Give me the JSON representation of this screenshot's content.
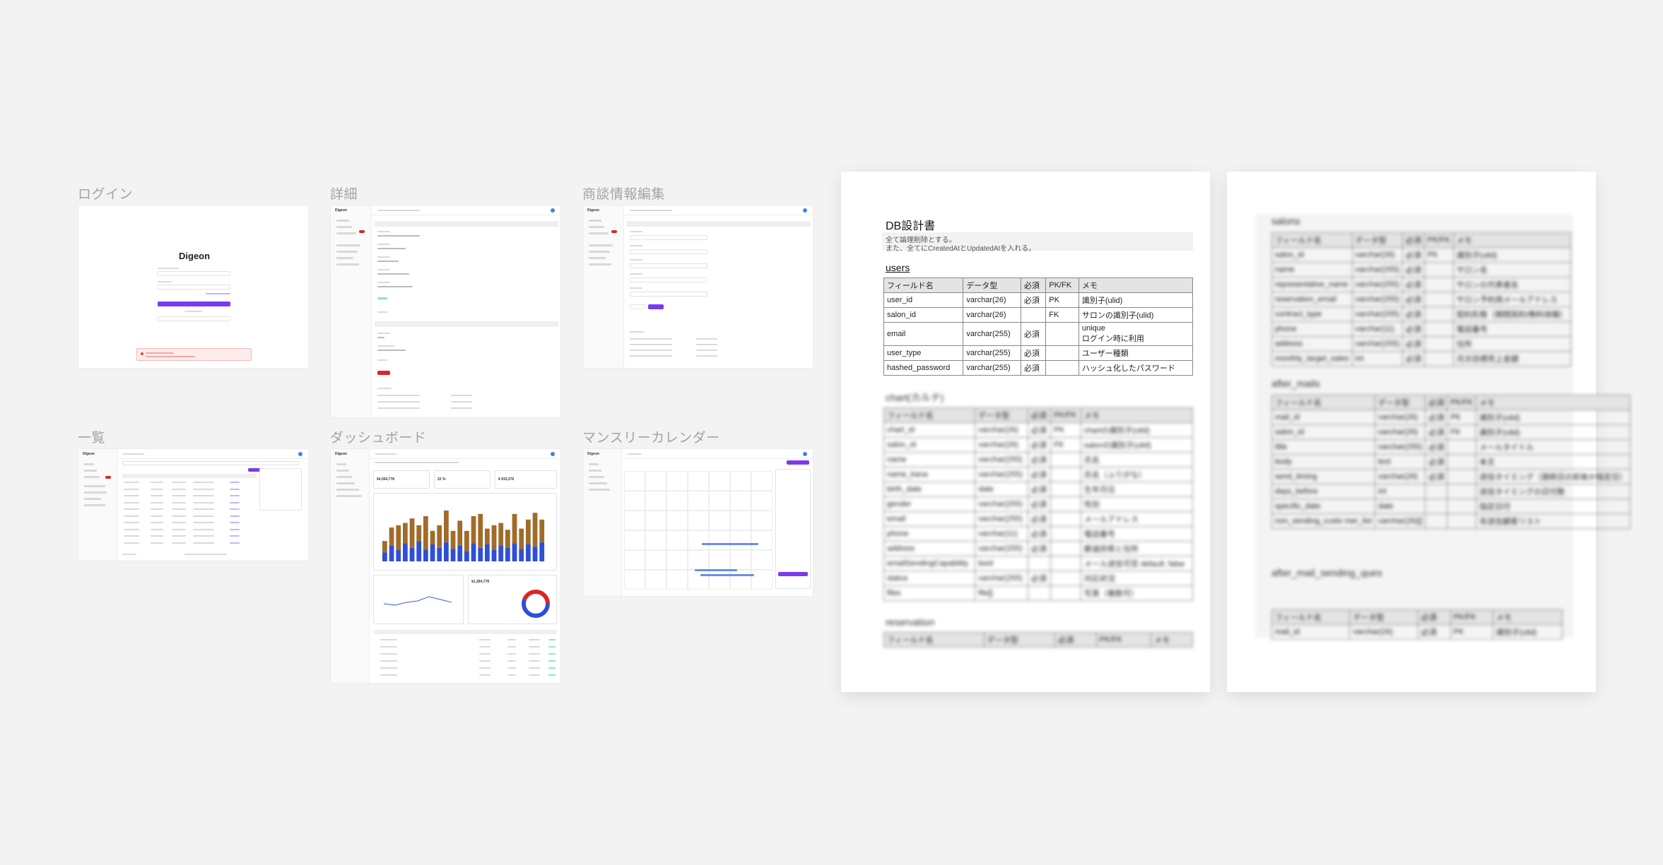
{
  "canvas": {
    "background": "#f3f3f4"
  },
  "accent": "#7c3aed",
  "frames": {
    "login": {
      "label": "ログイン",
      "logo": "Digeon"
    },
    "detail": {
      "label": "詳細"
    },
    "edit": {
      "label": "商談情報編集"
    },
    "list": {
      "label": "一覧"
    },
    "dashboard": {
      "label": "ダッシュボード",
      "kpi1": "¥4,064,778",
      "kpi2": "22 %",
      "kpi3": "¥ 933,376",
      "kpi4": "¥1,364,778"
    },
    "calendar": {
      "label": "マンスリーカレンダー"
    }
  },
  "doc1": {
    "title": "DB設計書",
    "note1": "全て論理削除とする。",
    "note2": "また、全てにCreatedAtとUpdatedAtを入れる。",
    "users": {
      "heading": "users",
      "headers": [
        "フィールド名",
        "データ型",
        "必須",
        "PK/FK",
        "メモ"
      ],
      "rows": [
        [
          "user_id",
          "varchar(26)",
          "必須",
          "PK",
          "識別子(ulid)"
        ],
        [
          "salon_id",
          "varchar(26)",
          "",
          "FK",
          "サロンの識別子(ulid)"
        ],
        [
          "email",
          "varchar(255)",
          "必須",
          "",
          "unique\nログイン時に利用"
        ],
        [
          "user_type",
          "varchar(255)",
          "必須",
          "",
          "ユーザー種類"
        ],
        [
          "hashed_password",
          "varchar(255)",
          "必須",
          "",
          "ハッシュ化したパスワード"
        ]
      ]
    },
    "chart": {
      "heading": "chart(カルテ)",
      "headers": [
        "フィールド名",
        "データ型",
        "必須",
        "PK/FK",
        "メモ"
      ],
      "rows": [
        [
          "chart_id",
          "varchar(26)",
          "必須",
          "PK",
          "chartの識別子(ulid)"
        ],
        [
          "salon_id",
          "varchar(26)",
          "必須",
          "FK",
          "salonの識別子(ulid)"
        ],
        [
          "name",
          "varchar(255)",
          "必須",
          "",
          "氏名"
        ],
        [
          "name_kana",
          "varchar(255)",
          "必須",
          "",
          "氏名（ふりがな）"
        ],
        [
          "birth_date",
          "date",
          "必須",
          "",
          "生年月日"
        ],
        [
          "gender",
          "varchar(255)",
          "必須",
          "",
          "性別"
        ],
        [
          "email",
          "varchar(255)",
          "必須",
          "",
          "メールアドレス"
        ],
        [
          "phone",
          "varchar(11)",
          "必須",
          "",
          "電話番号"
        ],
        [
          "address",
          "varchar(255)",
          "必須",
          "",
          "都道府県と住所"
        ],
        [
          "emailSendingCapability",
          "bool",
          "",
          "",
          "メール送信可否 default: false"
        ],
        [
          "status",
          "varchar(255)",
          "必須",
          "",
          "対応状況"
        ],
        [
          "files",
          "file[]",
          "",
          "",
          "写真（複数可）"
        ]
      ]
    },
    "reservation": {
      "heading": "reservation",
      "headers": [
        "フィールド名",
        "データ型",
        "必須",
        "PK/FK",
        "メモ"
      ]
    }
  },
  "doc2": {
    "salons": {
      "heading": "salons",
      "headers": [
        "フィールド名",
        "データ型",
        "必須",
        "PK/FK",
        "メモ"
      ],
      "rows": [
        [
          "salon_id",
          "varchar(26)",
          "必須",
          "PK",
          "識別子(ulid)"
        ],
        [
          "name",
          "varchar(255)",
          "必須",
          "",
          "サロン名"
        ],
        [
          "representative_name",
          "varchar(255)",
          "必須",
          "",
          "サロンの代表者名"
        ],
        [
          "reservation_email",
          "varchar(255)",
          "必須",
          "",
          "サロン予約用メールアドレス"
        ],
        [
          "contract_type",
          "varchar(255)",
          "必須",
          "",
          "契約形態（期間契約/無料体験）"
        ],
        [
          "phone",
          "varchar(11)",
          "必須",
          "",
          "電話番号"
        ],
        [
          "address",
          "varchar(255)",
          "必須",
          "",
          "住所"
        ],
        [
          "monthly_target_sales",
          "int",
          "必須",
          "",
          "月次目標売上金額"
        ]
      ]
    },
    "after_mails": {
      "heading": "after_mails",
      "headers": [
        "フィールド名",
        "データ型",
        "必須",
        "PK/FK",
        "メモ"
      ],
      "rows": [
        [
          "mail_id",
          "varchar(26)",
          "必須",
          "PK",
          "識別子(ulid)"
        ],
        [
          "salon_id",
          "varchar(26)",
          "必須",
          "FK",
          "識別子(ulid)"
        ],
        [
          "title",
          "varchar(255)",
          "必須",
          "",
          "メールタイトル"
        ],
        [
          "body",
          "text",
          "必須",
          "",
          "本文"
        ],
        [
          "send_timing",
          "varchar(26)",
          "必須",
          "",
          "送信タイミング（施術日の前後か指定日）"
        ],
        [
          "days_before",
          "int",
          "",
          "",
          "送信タイミングの日付数"
        ],
        [
          "specific_date",
          "date",
          "",
          "",
          "指定日付"
        ],
        [
          "non_sending_custo mer_list",
          "varchar(26)[]",
          "",
          "",
          "非送信顧客リスト"
        ]
      ]
    },
    "after_mail_sending_ques": {
      "heading": "after_mail_sending_ques",
      "headers": [
        "フィールド名",
        "データ型",
        "必須",
        "PK/FK",
        "メモ"
      ],
      "rows": [
        [
          "mail_id",
          "varchar(26)",
          "必須",
          "PK",
          "識別子(ulid)"
        ]
      ]
    }
  },
  "dashboard_chart": {
    "type": "bar",
    "values_bottom": [
      8,
      14,
      10,
      16,
      12,
      18,
      10,
      15,
      12,
      17,
      11,
      14,
      9,
      16,
      12,
      15,
      10,
      14,
      12,
      16,
      11,
      15,
      13,
      17
    ],
    "values_top": [
      10,
      16,
      22,
      18,
      26,
      14,
      30,
      12,
      20,
      28,
      16,
      22,
      18,
      24,
      30,
      14,
      22,
      20,
      16,
      26,
      18,
      22,
      30,
      20
    ],
    "colors": [
      "#2f4fd6",
      "#a06c2a"
    ]
  }
}
